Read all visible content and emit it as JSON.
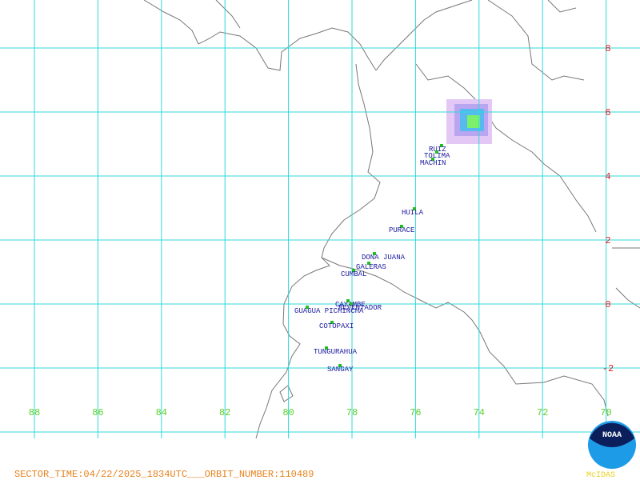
{
  "map": {
    "lat_labels": [
      "8",
      "6",
      "4",
      "2",
      "0",
      "-2"
    ],
    "lon_labels": [
      "88",
      "86",
      "84",
      "82",
      "80",
      "78",
      "76",
      "74",
      "72",
      "70"
    ],
    "volcanoes": [
      "RUIZ",
      "TOLIMA",
      "MACHIN",
      "HUILA",
      "PURACE",
      "DONA JUANA",
      "GALERAS",
      "CUMBAL",
      "CAYAMBE",
      "REVENTADOR",
      "GUAGUA PICHINCHA",
      "COTOPAXI",
      "TUNGURAHUA",
      "SANGAY"
    ],
    "footer": "SECTOR_TIME:04/22/2025_1834UTC___ORBIT_NUMBER:110489",
    "logo_text": "NOAA",
    "software": "McIDAS"
  }
}
